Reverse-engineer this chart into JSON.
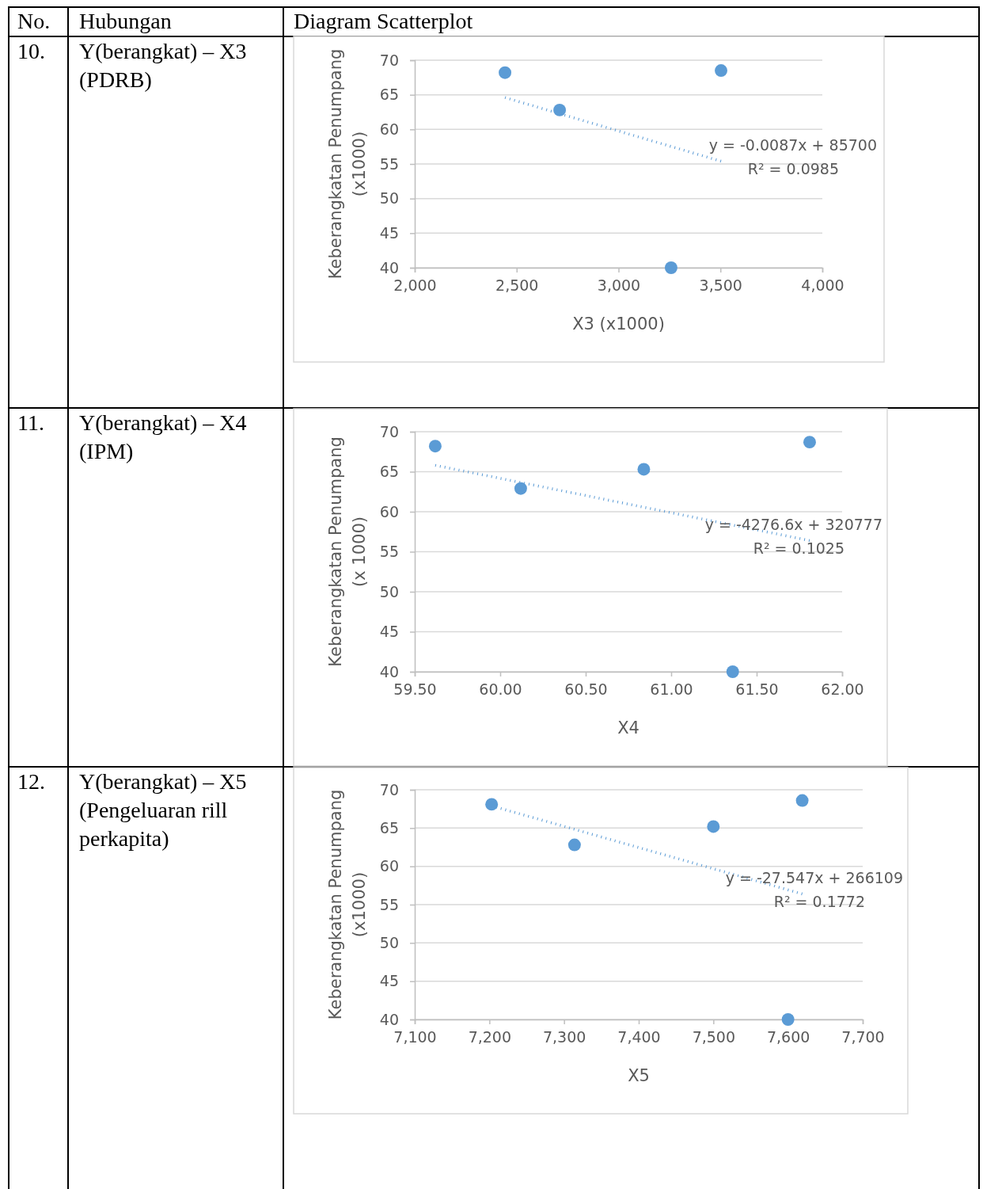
{
  "chart_data": [
    {
      "type": "scatter",
      "xlabel": "X3 (x1000)",
      "ylabel": "Keberangkatan Penumpang\n(x1000)",
      "xlim": [
        2000,
        4000
      ],
      "xticks": [
        {
          "value": 2000,
          "label": "2,000"
        },
        {
          "value": 2500,
          "label": "2,500"
        },
        {
          "value": 3000,
          "label": "3,000"
        },
        {
          "value": 3500,
          "label": "3,500"
        },
        {
          "value": 4000,
          "label": "4,000"
        }
      ],
      "ylim": [
        40,
        70
      ],
      "yticks": [
        40,
        45,
        50,
        55,
        60,
        65,
        70
      ],
      "grid": "y",
      "series": [
        {
          "type": "scatter",
          "color": "#5b9bd5",
          "marker": "circle",
          "x": [
            2443,
            2711,
            3503,
            3258
          ],
          "values": [
            68.2,
            62.8,
            68.5,
            40.0
          ]
        },
        {
          "type": "line",
          "color": "#5b9bd5",
          "marker": "none",
          "line_style": "dotted",
          "x": [
            2443,
            3503
          ],
          "values": [
            64.6,
            55.4
          ]
        }
      ],
      "annotations": [
        "No.",
        "Hubungan",
        "Diagram Scatterplot",
        "10.",
        "Y(berangkat) – X3 (PDRB)",
        "y = -0.0087x + 85700",
        "R² = 0.0985"
      ]
    },
    {
      "type": "scatter",
      "xlabel": "X4",
      "ylabel": "Keberangkatan Penumpang\n(x 1000)",
      "xlim": [
        59.5,
        62
      ],
      "xticks": [
        {
          "value": 59.5,
          "label": "59.50"
        },
        {
          "value": 60,
          "label": "60.00"
        },
        {
          "value": 60.5,
          "label": "60.50"
        },
        {
          "value": 61,
          "label": "61.00"
        },
        {
          "value": 61.5,
          "label": "61.50"
        },
        {
          "value": 62,
          "label": "62.00"
        }
      ],
      "ylim": [
        40,
        70
      ],
      "yticks": [
        40,
        45,
        50,
        55,
        60,
        65,
        70
      ],
      "grid": "y",
      "series": [
        {
          "type": "scatter",
          "color": "#5b9bd5",
          "marker": "circle",
          "x": [
            59.62,
            60.12,
            60.84,
            61.81,
            61.36
          ],
          "values": [
            68.2,
            62.9,
            65.3,
            68.7,
            40.0
          ]
        },
        {
          "type": "line",
          "color": "#5b9bd5",
          "marker": "none",
          "line_style": "dotted",
          "x": [
            59.62,
            61.81
          ],
          "values": [
            65.8,
            56.4
          ]
        }
      ],
      "annotations": [
        "11.",
        "Y(berangkat) – X4 (IPM)",
        "y = -4276.6x + 320777",
        "R² = 0.1025"
      ]
    },
    {
      "type": "scatter",
      "xlabel": "X5",
      "ylabel": "Keberangkatan Penumpang\n(x1000)",
      "xlim": [
        7100,
        7700
      ],
      "xticks": [
        {
          "value": 7100,
          "label": "7,100"
        },
        {
          "value": 7200,
          "label": "7,200"
        },
        {
          "value": 7300,
          "label": "7,300"
        },
        {
          "value": 7400,
          "label": "7,400"
        },
        {
          "value": 7500,
          "label": "7,500"
        },
        {
          "value": 7600,
          "label": "7,600"
        },
        {
          "value": 7700,
          "label": "7,700"
        }
      ],
      "ylim": [
        40,
        70
      ],
      "yticks": [
        40,
        45,
        50,
        55,
        60,
        65,
        70
      ],
      "grid": "y",
      "series": [
        {
          "type": "scatter",
          "color": "#5b9bd5",
          "marker": "circle",
          "x": [
            7203,
            7314,
            7500,
            7619,
            7600
          ],
          "values": [
            68.1,
            62.8,
            65.2,
            68.6,
            40.0
          ]
        },
        {
          "type": "line",
          "color": "#5b9bd5",
          "marker": "none",
          "line_style": "dotted",
          "x": [
            7203,
            7619
          ],
          "values": [
            67.9,
            56.4
          ]
        }
      ],
      "annotations": [
        "12.",
        "Y(berangkat) – X5 (Pengeluaran rill perkapita)",
        "y = -27.547x + 266109",
        "R² = 0.1772"
      ]
    }
  ]
}
